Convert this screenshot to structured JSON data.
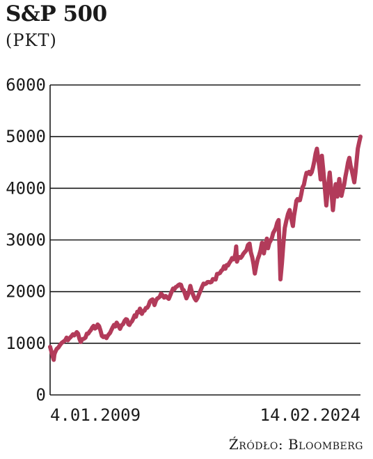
{
  "header": {
    "title": "S&P 500",
    "subtitle": "(PKT)"
  },
  "footer": {
    "source": "Źródło: Bloomberg"
  },
  "colors": {
    "line": "#b23b5a",
    "grid": "#1a1a1a",
    "text": "#1a1a1a"
  },
  "chart_data": {
    "type": "line",
    "title": "S&P 500",
    "ylabel": "(PKT)",
    "ylim": [
      0,
      6000
    ],
    "yticks": [
      0,
      1000,
      2000,
      3000,
      4000,
      5000,
      6000
    ],
    "xlim": [
      "2009-01-04",
      "2024-02-14"
    ],
    "xtick_labels": [
      "4.01.2009",
      "14.02.2024"
    ],
    "grid": "horizontal",
    "series": [
      {
        "points": [
          [
            "2009-01-04",
            930
          ],
          [
            "2009-02-01",
            820
          ],
          [
            "2009-03-09",
            680
          ],
          [
            "2009-04-01",
            820
          ],
          [
            "2009-06-01",
            920
          ],
          [
            "2009-08-01",
            1010
          ],
          [
            "2009-10-01",
            1060
          ],
          [
            "2009-12-31",
            1115
          ],
          [
            "2010-04-23",
            1215
          ],
          [
            "2010-07-02",
            1025
          ],
          [
            "2010-09-01",
            1090
          ],
          [
            "2010-12-31",
            1258
          ],
          [
            "2011-04-29",
            1363
          ],
          [
            "2011-08-08",
            1120
          ],
          [
            "2011-10-03",
            1100
          ],
          [
            "2011-12-30",
            1258
          ],
          [
            "2012-04-01",
            1400
          ],
          [
            "2012-06-01",
            1280
          ],
          [
            "2012-09-14",
            1465
          ],
          [
            "2012-11-15",
            1355
          ],
          [
            "2012-12-31",
            1426
          ],
          [
            "2013-05-21",
            1670
          ],
          [
            "2013-06-24",
            1570
          ],
          [
            "2013-12-31",
            1848
          ],
          [
            "2014-02-03",
            1740
          ],
          [
            "2014-06-01",
            1960
          ],
          [
            "2014-10-15",
            1860
          ],
          [
            "2014-12-31",
            2059
          ],
          [
            "2015-05-21",
            2130
          ],
          [
            "2015-08-25",
            1870
          ],
          [
            "2015-11-03",
            2110
          ],
          [
            "2016-02-11",
            1830
          ],
          [
            "2016-06-01",
            2100
          ],
          [
            "2016-12-31",
            2239
          ],
          [
            "2017-06-01",
            2430
          ],
          [
            "2017-12-31",
            2674
          ],
          [
            "2018-01-26",
            2873
          ],
          [
            "2018-02-08",
            2580
          ],
          [
            "2018-06-01",
            2730
          ],
          [
            "2018-09-20",
            2930
          ],
          [
            "2018-12-24",
            2350
          ],
          [
            "2019-04-30",
            2945
          ],
          [
            "2019-06-03",
            2740
          ],
          [
            "2019-07-26",
            3025
          ],
          [
            "2019-08-15",
            2840
          ],
          [
            "2019-12-31",
            3231
          ],
          [
            "2020-02-19",
            3386
          ],
          [
            "2020-03-23",
            2237
          ],
          [
            "2020-06-08",
            3230
          ],
          [
            "2020-09-02",
            3580
          ],
          [
            "2020-10-30",
            3270
          ],
          [
            "2020-12-31",
            3756
          ],
          [
            "2021-03-04",
            3770
          ],
          [
            "2021-06-30",
            4300
          ],
          [
            "2021-09-30",
            4310
          ],
          [
            "2021-12-31",
            4766
          ],
          [
            "2022-03-08",
            4170
          ],
          [
            "2022-03-29",
            4630
          ],
          [
            "2022-06-16",
            3667
          ],
          [
            "2022-08-16",
            4305
          ],
          [
            "2022-10-12",
            3577
          ],
          [
            "2022-12-01",
            4080
          ],
          [
            "2022-12-30",
            3840
          ],
          [
            "2023-02-02",
            4180
          ],
          [
            "2023-03-13",
            3855
          ],
          [
            "2023-07-31",
            4589
          ],
          [
            "2023-10-27",
            4117
          ],
          [
            "2023-12-29",
            4770
          ],
          [
            "2024-02-14",
            5000
          ]
        ]
      }
    ]
  }
}
